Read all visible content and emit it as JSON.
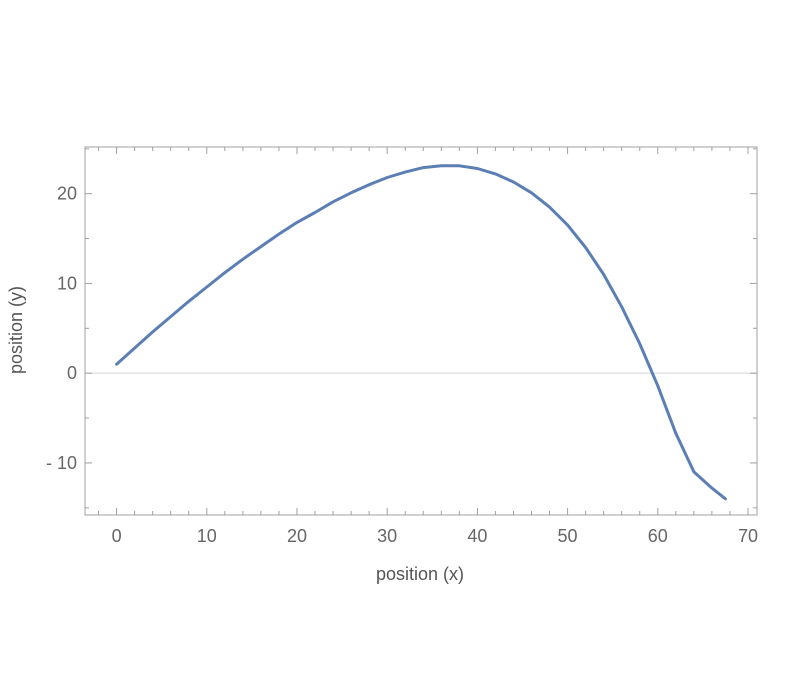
{
  "chart_data": {
    "type": "line",
    "title": "",
    "xlabel": "position (x)",
    "ylabel": "position (y)",
    "xlim": [
      -3.5,
      71
    ],
    "ylim": [
      -15.8,
      25.2
    ],
    "xticks": [
      0,
      10,
      20,
      30,
      40,
      50,
      60,
      70
    ],
    "xtick_labels": [
      "0",
      "10",
      "20",
      "30",
      "40",
      "50",
      "60",
      "70"
    ],
    "yticks": [
      -10,
      0,
      10,
      20
    ],
    "ytick_labels": [
      "- 10",
      "0",
      "10",
      "20"
    ],
    "grid": false,
    "zero_line": true,
    "series_color": "#5b7fb5",
    "series": [
      {
        "x": [
          0,
          2,
          4,
          6,
          8,
          10,
          12,
          14,
          16,
          18,
          20,
          22,
          24,
          26,
          28,
          30,
          32,
          34,
          36,
          38,
          40,
          42,
          44,
          46,
          48,
          50,
          52,
          54,
          56,
          58,
          60,
          62,
          64,
          66,
          67.5
        ],
        "y": [
          1.0,
          2.8,
          4.6,
          6.3,
          8.0,
          9.6,
          11.2,
          12.7,
          14.1,
          15.5,
          16.8,
          17.9,
          19.1,
          20.1,
          21.0,
          21.8,
          22.4,
          22.9,
          23.1,
          23.1,
          22.8,
          22.2,
          21.3,
          20.1,
          18.5,
          16.5,
          14.0,
          11.0,
          7.4,
          3.3,
          -1.4,
          -6.7,
          -11.0,
          -12.8,
          -14.0
        ]
      }
    ]
  }
}
